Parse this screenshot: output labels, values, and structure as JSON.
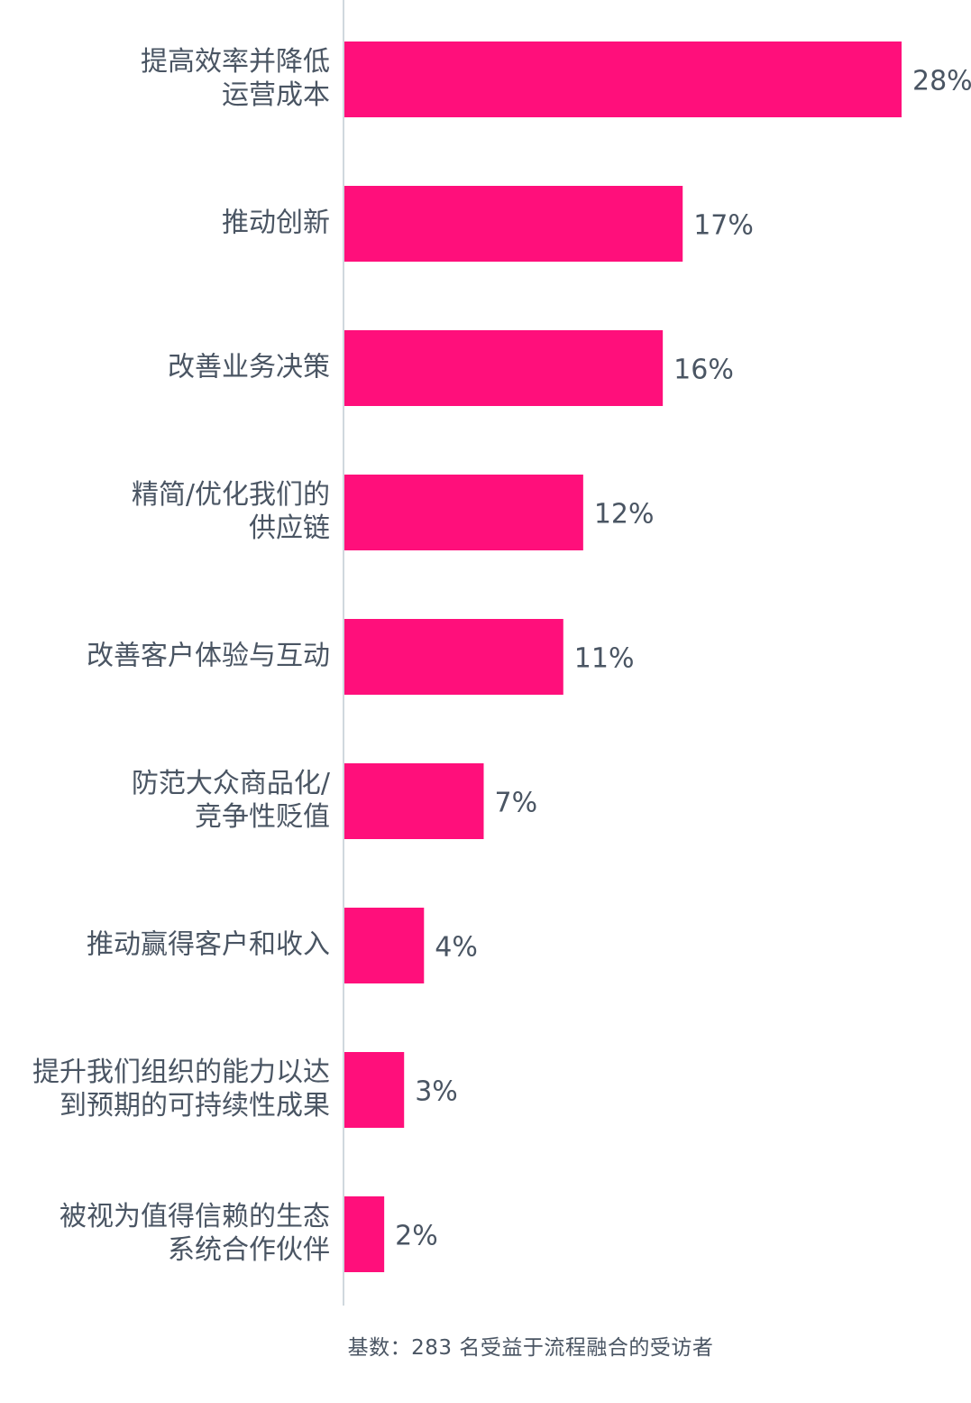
{
  "chart_data": {
    "type": "bar",
    "orientation": "horizontal",
    "categories": [
      [
        "提高效率并降低",
        "运营成本"
      ],
      [
        "推动创新"
      ],
      [
        "改善业务决策"
      ],
      [
        "精简/优化我们的",
        "供应链"
      ],
      [
        "改善客户体验与互动"
      ],
      [
        "防范大众商品化/",
        "竞争性贬值"
      ],
      [
        "推动赢得客户和收入"
      ],
      [
        "提升我们组织的能力以达",
        "到预期的可持续性成果"
      ],
      [
        "被视为值得信赖的生态",
        "系统合作伙伴"
      ]
    ],
    "values": [
      28,
      17,
      16,
      12,
      11,
      7,
      4,
      3,
      2
    ],
    "value_labels": [
      "28%",
      "17%",
      "16%",
      "12%",
      "11%",
      "7%",
      "4%",
      "3%",
      "2%"
    ],
    "xlim": [
      0,
      28
    ],
    "bar_color": "#ff0f7b",
    "axis_color": "#d0d8de",
    "text_color": "#4a5563",
    "grid": false,
    "legend": "none"
  },
  "footnote": "基数：283 名受益于流程融合的受访者"
}
